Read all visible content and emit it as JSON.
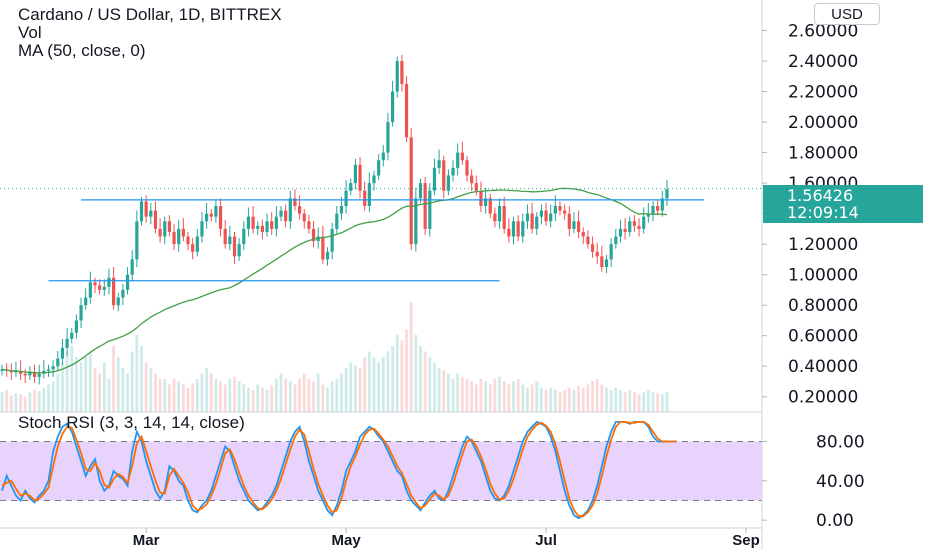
{
  "header": {
    "title": "Cardano / US Dollar, 1D, BITTREX",
    "line2": "Vol",
    "line3": "MA (50, close, 0)"
  },
  "currency_button": "USD",
  "price_tag": {
    "price": "1.56426",
    "countdown": "12:09:14"
  },
  "indicator": {
    "label": "Stoch RSI (3, 3, 14, 14, close)"
  },
  "colors": {
    "up": "#26a69a",
    "down": "#ef5350",
    "ma": "#43a047",
    "level_lines": "#2196f3",
    "stoch_k": "#2196f3",
    "stoch_d": "#ff6d00",
    "stoch_band": "#e1c8fb"
  },
  "chart_data": [
    {
      "type": "candlestick",
      "title": "Cardano / US Dollar, 1D, BITTREX",
      "x_ticks": [
        "Mar",
        "May",
        "Jul",
        "Sep"
      ],
      "y_ticks": [
        "0.20000",
        "0.40000",
        "0.60000",
        "0.80000",
        "1.00000",
        "1.20000",
        "1.40000",
        "1.60000",
        "1.80000",
        "2.00000",
        "2.20000",
        "2.40000",
        "2.60000"
      ],
      "ylim": [
        0.1,
        2.8
      ],
      "last_price": 1.56426,
      "ma_period": 50,
      "support_level": 0.96,
      "resistance_level": 1.49,
      "close": [
        0.38,
        0.37,
        0.36,
        0.37,
        0.35,
        0.34,
        0.36,
        0.33,
        0.35,
        0.37,
        0.38,
        0.4,
        0.45,
        0.52,
        0.58,
        0.62,
        0.7,
        0.8,
        0.85,
        0.95,
        0.93,
        0.9,
        0.92,
        0.98,
        0.8,
        0.85,
        0.9,
        1.0,
        1.1,
        1.35,
        1.48,
        1.38,
        1.42,
        1.3,
        1.25,
        1.35,
        1.28,
        1.2,
        1.3,
        1.25,
        1.2,
        1.15,
        1.25,
        1.35,
        1.4,
        1.38,
        1.45,
        1.3,
        1.2,
        1.25,
        1.12,
        1.2,
        1.3,
        1.38,
        1.3,
        1.32,
        1.28,
        1.35,
        1.3,
        1.38,
        1.42,
        1.35,
        1.5,
        1.45,
        1.4,
        1.35,
        1.3,
        1.22,
        1.25,
        1.1,
        1.15,
        1.3,
        1.4,
        1.45,
        1.55,
        1.6,
        1.72,
        1.55,
        1.45,
        1.6,
        1.65,
        1.75,
        1.8,
        2.0,
        2.2,
        2.4,
        2.25,
        1.9,
        1.2,
        1.5,
        1.6,
        1.3,
        1.55,
        1.7,
        1.75,
        1.55,
        1.65,
        1.7,
        1.8,
        1.75,
        1.65,
        1.6,
        1.55,
        1.45,
        1.5,
        1.4,
        1.35,
        1.45,
        1.3,
        1.25,
        1.35,
        1.25,
        1.35,
        1.4,
        1.3,
        1.38,
        1.42,
        1.35,
        1.4,
        1.45,
        1.42,
        1.4,
        1.3,
        1.35,
        1.28,
        1.25,
        1.2,
        1.15,
        1.12,
        1.05,
        1.1,
        1.2,
        1.25,
        1.3,
        1.28,
        1.35,
        1.32,
        1.3,
        1.38,
        1.4,
        1.45,
        1.42,
        1.5,
        1.56
      ],
      "volume": [
        0.18,
        0.2,
        0.15,
        0.17,
        0.16,
        0.14,
        0.18,
        0.2,
        0.19,
        0.22,
        0.25,
        0.28,
        0.35,
        0.45,
        0.55,
        0.6,
        0.5,
        0.45,
        0.5,
        0.55,
        0.4,
        0.35,
        0.45,
        0.3,
        0.6,
        0.5,
        0.4,
        0.35,
        0.55,
        0.7,
        0.6,
        0.45,
        0.4,
        0.35,
        0.3,
        0.3,
        0.25,
        0.3,
        0.28,
        0.25,
        0.22,
        0.26,
        0.3,
        0.35,
        0.4,
        0.35,
        0.3,
        0.28,
        0.25,
        0.3,
        0.32,
        0.28,
        0.25,
        0.22,
        0.2,
        0.25,
        0.22,
        0.2,
        0.24,
        0.3,
        0.35,
        0.3,
        0.28,
        0.25,
        0.3,
        0.35,
        0.3,
        0.28,
        0.35,
        0.25,
        0.22,
        0.28,
        0.3,
        0.35,
        0.4,
        0.45,
        0.42,
        0.4,
        0.5,
        0.55,
        0.5,
        0.45,
        0.5,
        0.55,
        0.6,
        0.7,
        0.65,
        0.75,
        1.0,
        0.7,
        0.6,
        0.55,
        0.5,
        0.45,
        0.4,
        0.38,
        0.35,
        0.3,
        0.35,
        0.32,
        0.3,
        0.28,
        0.25,
        0.3,
        0.28,
        0.25,
        0.3,
        0.32,
        0.28,
        0.25,
        0.28,
        0.3,
        0.25,
        0.22,
        0.25,
        0.28,
        0.22,
        0.2,
        0.22,
        0.2,
        0.18,
        0.2,
        0.22,
        0.2,
        0.24,
        0.22,
        0.25,
        0.28,
        0.3,
        0.25,
        0.22,
        0.2,
        0.22,
        0.2,
        0.18,
        0.2,
        0.18,
        0.16,
        0.18,
        0.2,
        0.18,
        0.17,
        0.16,
        0.18
      ]
    },
    {
      "type": "line",
      "title": "Stoch RSI (3, 3, 14, 14, close)",
      "y_ticks": [
        "0.00",
        "40.00",
        "80.00"
      ],
      "ylim": [
        -8,
        108
      ],
      "band": [
        20,
        80
      ],
      "series": [
        {
          "values": [
            30,
            45,
            35,
            25,
            20,
            30,
            22,
            18,
            25,
            30,
            40,
            70,
            85,
            95,
            98,
            90,
            75,
            60,
            45,
            55,
            62,
            40,
            30,
            35,
            50,
            45,
            42,
            35,
            70,
            90,
            80,
            60,
            45,
            30,
            22,
            30,
            55,
            50,
            40,
            35,
            20,
            10,
            8,
            15,
            20,
            30,
            45,
            60,
            75,
            70,
            55,
            40,
            30,
            20,
            15,
            10,
            12,
            18,
            25,
            35,
            50,
            65,
            80,
            90,
            95,
            80,
            60,
            45,
            30,
            20,
            10,
            5,
            15,
            30,
            50,
            60,
            70,
            85,
            90,
            95,
            92,
            85,
            80,
            70,
            60,
            50,
            45,
            30,
            20,
            15,
            10,
            18,
            25,
            30,
            22,
            20,
            30,
            45,
            60,
            75,
            85,
            80,
            70,
            60,
            45,
            30,
            22,
            20,
            25,
            35,
            50,
            65,
            80,
            90,
            95,
            100,
            98,
            95,
            85,
            70,
            50,
            30,
            15,
            5,
            2,
            5,
            10,
            20,
            35,
            55,
            75,
            90,
            100,
            100,
            100,
            98,
            100,
            100,
            100,
            95,
            85,
            80,
            80,
            80,
            80,
            80
          ]
        },
        {
          "values": [
            35,
            38,
            40,
            32,
            25,
            27,
            25,
            20,
            22,
            27,
            33,
            55,
            75,
            88,
            95,
            94,
            82,
            68,
            52,
            50,
            58,
            50,
            36,
            33,
            42,
            47,
            44,
            38,
            55,
            78,
            85,
            70,
            55,
            40,
            28,
            27,
            45,
            52,
            45,
            38,
            28,
            15,
            10,
            12,
            16,
            25,
            37,
            52,
            68,
            72,
            62,
            48,
            35,
            25,
            18,
            12,
            11,
            15,
            21,
            30,
            42,
            57,
            72,
            85,
            92,
            87,
            70,
            52,
            37,
            25,
            15,
            8,
            10,
            22,
            40,
            55,
            65,
            77,
            87,
            92,
            93,
            88,
            82,
            75,
            65,
            55,
            48,
            37,
            25,
            18,
            12,
            15,
            21,
            27,
            25,
            21,
            25,
            37,
            52,
            67,
            80,
            82,
            75,
            65,
            52,
            37,
            27,
            21,
            22,
            30,
            42,
            57,
            72,
            85,
            92,
            97,
            99,
            96,
            90,
            77,
            60,
            40,
            22,
            10,
            4,
            4,
            8,
            15,
            27,
            45,
            65,
            82,
            95,
            100,
            100,
            99,
            99,
            100,
            100,
            97,
            90,
            83,
            80,
            80,
            80,
            80
          ]
        }
      ]
    }
  ]
}
